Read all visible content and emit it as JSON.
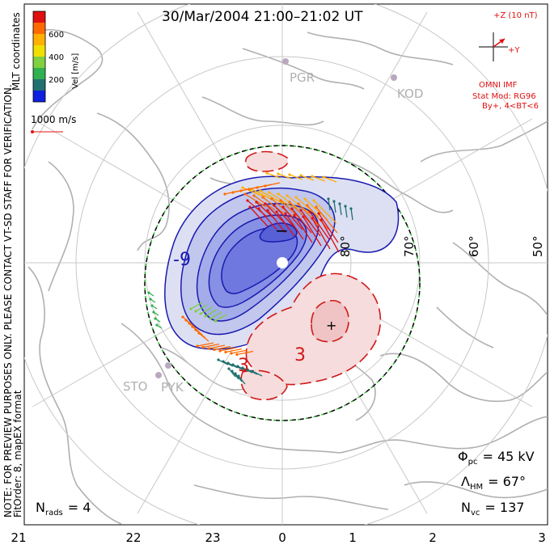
{
  "title": "30/Mar/2004 21:00–21:02 UT",
  "colorbar": {
    "label": "Vel [m/s]",
    "ticks": [
      "600",
      "400",
      "200"
    ],
    "colors": [
      "#e01010",
      "#ff6a00",
      "#ffb000",
      "#f0e000",
      "#80d040",
      "#30b050",
      "#207070",
      "#1020e0"
    ]
  },
  "coordinate_label": "MLT coordinates",
  "vector_scale_label": "1000 m/s",
  "side_note_top": "NOTE: FOR PREVIEW PURPOSES ONLY. PLEASE CONTACT VT-SD STAFF FOR VERIFICATION.",
  "side_note_bottom": "FitOrder: 8, mapEX format",
  "imf": {
    "z_label": "+Z (10 nT)",
    "y_label": "+Y",
    "source_label": "OMNI IMF",
    "model_label": "Stat Mod: RG96",
    "model_params": "By+, 4<BT<6",
    "color": "#e01010"
  },
  "stations": [
    {
      "name": "PGR"
    },
    {
      "name": "KOD"
    },
    {
      "name": "STO"
    },
    {
      "name": "PYK"
    }
  ],
  "lat_labels": [
    "80°",
    "70°",
    "60°",
    "50°"
  ],
  "contour_labels": {
    "neg_value": "-9",
    "pos_value_1": "3",
    "pos_value_2": "3",
    "min_marker": "−",
    "max_marker": "+"
  },
  "stats": {
    "phi_label": "Φ",
    "phi_sub": "pc",
    "phi_value": "= 45 kV",
    "lambda_label": "Λ",
    "lambda_sub": "HM",
    "lambda_value": "= 67°",
    "nvc_label": "N",
    "nvc_sub": "vc",
    "nvc_value": "= 137",
    "nrads_label": "N",
    "nrads_sub": "rads",
    "nrads_value": "= 4"
  },
  "mlt_ticks": [
    "21",
    "22",
    "23",
    "0",
    "1",
    "2",
    "3"
  ],
  "colors": {
    "negative_contour": "#1a1ab0",
    "positive_contour": "#d01818",
    "land": "#b0b0b0",
    "grid": "#c8c8c8",
    "boundary_dash": "#30c030"
  }
}
